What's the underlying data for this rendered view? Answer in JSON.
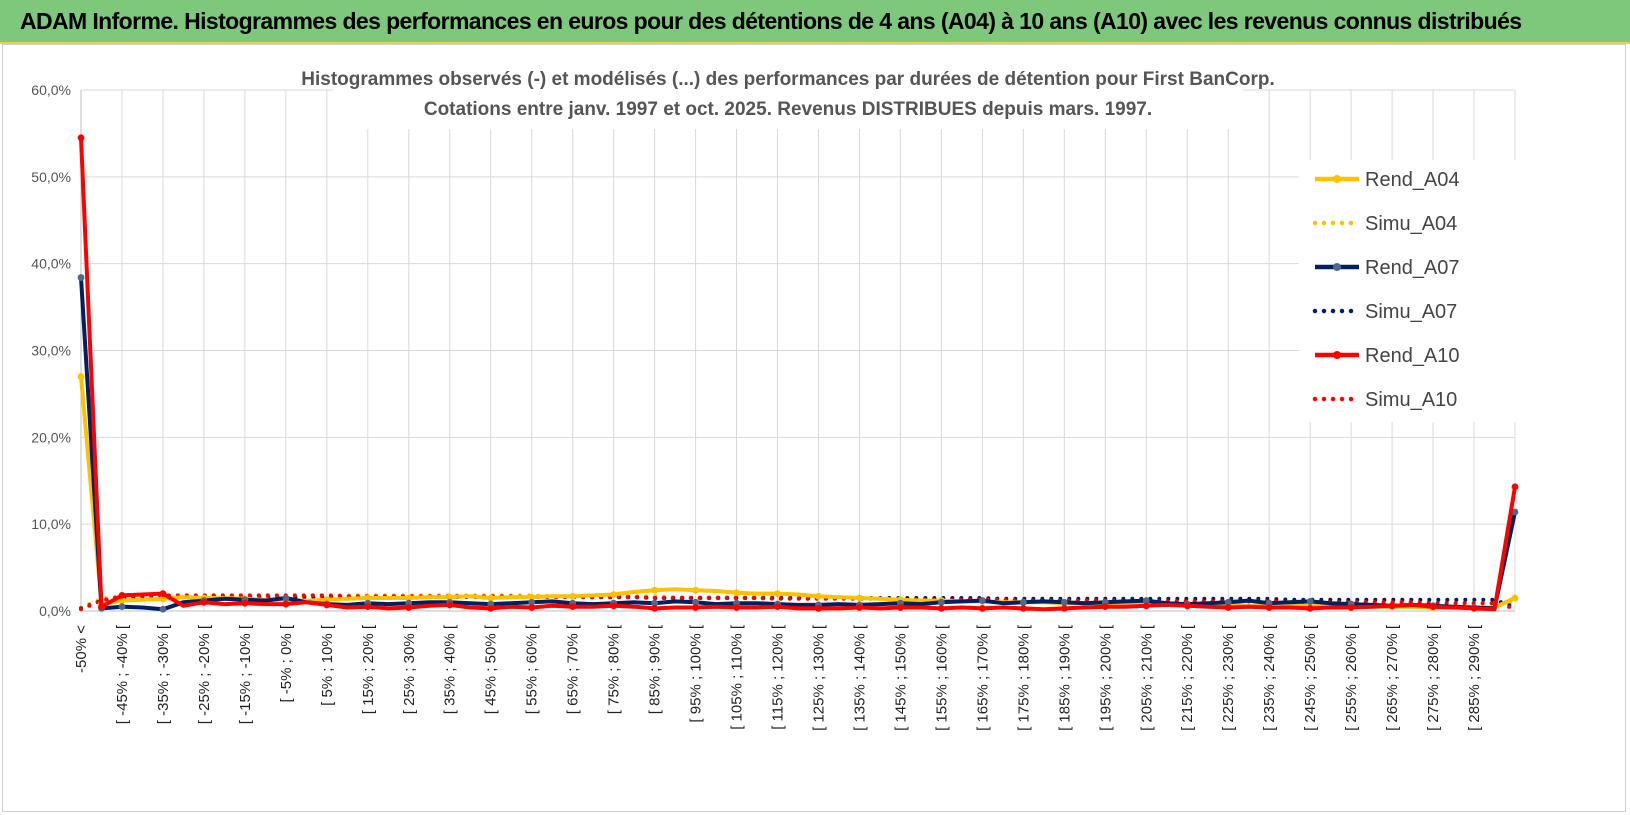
{
  "banner": {
    "title": "ADAM Informe. Histogrammes des performances en euros pour des détentions de 4 ans (A04) à 10 ans (A10) avec les revenus connus distribués"
  },
  "colors": {
    "A04": "#ffc000",
    "A07": "#002060",
    "A10": "#ff0000",
    "grid": "#d9d9d9",
    "banner": "#7dc87a"
  },
  "chart_data": {
    "type": "line",
    "title": "Histogrammes observés (-) et modélisés (...) des performances par durées de détention pour First BanCorp.",
    "subtitle": "Cotations entre janv. 1997 et oct. 2025.  Revenus DISTRIBUES depuis mars. 1997.",
    "xlabel": "",
    "ylabel": "",
    "ylim": [
      0,
      0.6
    ],
    "yticks": [
      "0,0%",
      "10,0%",
      "20,0%",
      "30,0%",
      "40,0%",
      "50,0%",
      "60,0%"
    ],
    "grid": true,
    "legend_position": "right",
    "x_labels_shown": [
      "-50% <",
      "[ -45% ; -40% [",
      "[ -35% ; -30% [",
      "[ -25% ; -20% [",
      "[ -15% ; -10% [",
      "[ -5% ; 0% [",
      "[ 5% ; 10% [",
      "[ 15% ; 20% [",
      "[ 25% ; 30% [",
      "[ 35% ; 40% [",
      "[ 45% ; 50% [",
      "[ 55% ; 60% [",
      "[ 65% ; 70% [",
      "[ 75% ; 80% [",
      "[ 85% ; 90% [",
      "[ 95% ; 100% [",
      "[ 105% ; 110% [",
      "[ 115% ; 120% [",
      "[ 125% ; 130% [",
      "[ 135% ; 140% [",
      "[ 145% ; 150% [",
      "[ 155% ; 160% [",
      "[ 165% ; 170% [",
      "[ 175% ; 180% [",
      "[ 185% ; 190% [",
      "[ 195% ; 200% [",
      "[ 205% ; 210% [",
      "[ 215% ; 220% [",
      "[ 225% ; 230% [",
      "[ 235% ; 240% [",
      "[ 245% ; 250% [",
      "[ 255% ; 260% [",
      "[ 265% ; 270% [",
      "[ 275% ; 280% [",
      "[ 285% ; 290% ["
    ],
    "category_count": 71,
    "series": [
      {
        "name": "Rend_A04",
        "style": "solid",
        "color": "#ffc000",
        "values": [
          0.27,
          0.008,
          0.012,
          0.013,
          0.014,
          0.016,
          0.015,
          0.015,
          0.014,
          0.013,
          0.013,
          0.012,
          0.013,
          0.014,
          0.015,
          0.015,
          0.015,
          0.016,
          0.016,
          0.017,
          0.015,
          0.016,
          0.016,
          0.017,
          0.017,
          0.018,
          0.019,
          0.022,
          0.024,
          0.025,
          0.024,
          0.023,
          0.021,
          0.02,
          0.02,
          0.019,
          0.017,
          0.016,
          0.015,
          0.014,
          0.013,
          0.012,
          0.012,
          0.011,
          0.011,
          0.01,
          0.01,
          0.01,
          0.009,
          0.009,
          0.009,
          0.008,
          0.008,
          0.008,
          0.007,
          0.007,
          0.007,
          0.006,
          0.006,
          0.006,
          0.006,
          0.005,
          0.005,
          0.005,
          0.005,
          0.005,
          0.004,
          0.004,
          0.004,
          0.004,
          0.015
        ]
      },
      {
        "name": "Simu_A04",
        "style": "dotted",
        "color": "#ffc000",
        "values": [
          0.004,
          0.014,
          0.017,
          0.018,
          0.018,
          0.018,
          0.018,
          0.018,
          0.018,
          0.018,
          0.018,
          0.018,
          0.018,
          0.018,
          0.018,
          0.018,
          0.018,
          0.018,
          0.018,
          0.018,
          0.018,
          0.018,
          0.018,
          0.017,
          0.017,
          0.017,
          0.017,
          0.017,
          0.017,
          0.016,
          0.016,
          0.016,
          0.016,
          0.016,
          0.016,
          0.015,
          0.015,
          0.015,
          0.015,
          0.015,
          0.014,
          0.014,
          0.014,
          0.014,
          0.014,
          0.013,
          0.013,
          0.013,
          0.013,
          0.013,
          0.012,
          0.012,
          0.012,
          0.012,
          0.012,
          0.012,
          0.011,
          0.011,
          0.011,
          0.011,
          0.011,
          0.011,
          0.01,
          0.01,
          0.01,
          0.01,
          0.01,
          0.01,
          0.009,
          0.009,
          0.009
        ]
      },
      {
        "name": "Rend_A07",
        "style": "solid",
        "color": "#002060",
        "values": [
          0.384,
          0.003,
          0.005,
          0.004,
          0.002,
          0.01,
          0.012,
          0.014,
          0.013,
          0.012,
          0.015,
          0.01,
          0.008,
          0.007,
          0.009,
          0.008,
          0.009,
          0.01,
          0.01,
          0.009,
          0.008,
          0.009,
          0.01,
          0.011,
          0.009,
          0.008,
          0.009,
          0.01,
          0.009,
          0.011,
          0.01,
          0.008,
          0.009,
          0.009,
          0.008,
          0.007,
          0.007,
          0.008,
          0.007,
          0.008,
          0.009,
          0.008,
          0.01,
          0.011,
          0.012,
          0.009,
          0.01,
          0.011,
          0.01,
          0.009,
          0.01,
          0.011,
          0.012,
          0.009,
          0.008,
          0.009,
          0.01,
          0.012,
          0.009,
          0.01,
          0.011,
          0.009,
          0.008,
          0.007,
          0.006,
          0.007,
          0.006,
          0.005,
          0.004,
          0.003,
          0.114
        ]
      },
      {
        "name": "Simu_A07",
        "style": "dotted",
        "color": "#002060",
        "values": [
          0.003,
          0.012,
          0.015,
          0.016,
          0.016,
          0.016,
          0.016,
          0.016,
          0.016,
          0.016,
          0.016,
          0.016,
          0.016,
          0.016,
          0.016,
          0.016,
          0.016,
          0.016,
          0.016,
          0.016,
          0.016,
          0.016,
          0.016,
          0.016,
          0.016,
          0.016,
          0.016,
          0.016,
          0.015,
          0.015,
          0.015,
          0.015,
          0.015,
          0.015,
          0.015,
          0.015,
          0.015,
          0.015,
          0.015,
          0.015,
          0.015,
          0.015,
          0.015,
          0.015,
          0.015,
          0.014,
          0.014,
          0.014,
          0.014,
          0.014,
          0.014,
          0.014,
          0.014,
          0.014,
          0.014,
          0.014,
          0.014,
          0.014,
          0.014,
          0.013,
          0.013,
          0.013,
          0.013,
          0.013,
          0.013,
          0.013,
          0.013,
          0.013,
          0.013,
          0.013,
          0.004
        ]
      },
      {
        "name": "Rend_A10",
        "style": "solid",
        "color": "#ff0000",
        "values": [
          0.545,
          0.005,
          0.018,
          0.019,
          0.02,
          0.006,
          0.01,
          0.008,
          0.009,
          0.008,
          0.008,
          0.01,
          0.007,
          0.004,
          0.005,
          0.003,
          0.004,
          0.006,
          0.007,
          0.004,
          0.003,
          0.005,
          0.004,
          0.006,
          0.005,
          0.005,
          0.006,
          0.005,
          0.003,
          0.004,
          0.004,
          0.005,
          0.004,
          0.004,
          0.005,
          0.003,
          0.003,
          0.003,
          0.004,
          0.003,
          0.004,
          0.004,
          0.003,
          0.004,
          0.003,
          0.004,
          0.003,
          0.002,
          0.003,
          0.004,
          0.005,
          0.005,
          0.006,
          0.007,
          0.006,
          0.005,
          0.004,
          0.005,
          0.004,
          0.004,
          0.003,
          0.004,
          0.004,
          0.005,
          0.006,
          0.007,
          0.005,
          0.004,
          0.003,
          0.002,
          0.143
        ]
      },
      {
        "name": "Simu_A10",
        "style": "dotted",
        "color": "#ff0000",
        "values": [
          0.002,
          0.012,
          0.017,
          0.018,
          0.018,
          0.018,
          0.018,
          0.018,
          0.018,
          0.018,
          0.018,
          0.018,
          0.018,
          0.017,
          0.017,
          0.017,
          0.017,
          0.017,
          0.017,
          0.017,
          0.017,
          0.017,
          0.016,
          0.016,
          0.016,
          0.016,
          0.016,
          0.016,
          0.015,
          0.015,
          0.015,
          0.015,
          0.015,
          0.015,
          0.014,
          0.014,
          0.014,
          0.014,
          0.014,
          0.014,
          0.013,
          0.013,
          0.013,
          0.013,
          0.013,
          0.013,
          0.012,
          0.012,
          0.012,
          0.012,
          0.012,
          0.012,
          0.011,
          0.011,
          0.011,
          0.011,
          0.011,
          0.011,
          0.011,
          0.01,
          0.01,
          0.01,
          0.01,
          0.01,
          0.01,
          0.01,
          0.009,
          0.009,
          0.009,
          0.009,
          0.003
        ]
      }
    ]
  }
}
